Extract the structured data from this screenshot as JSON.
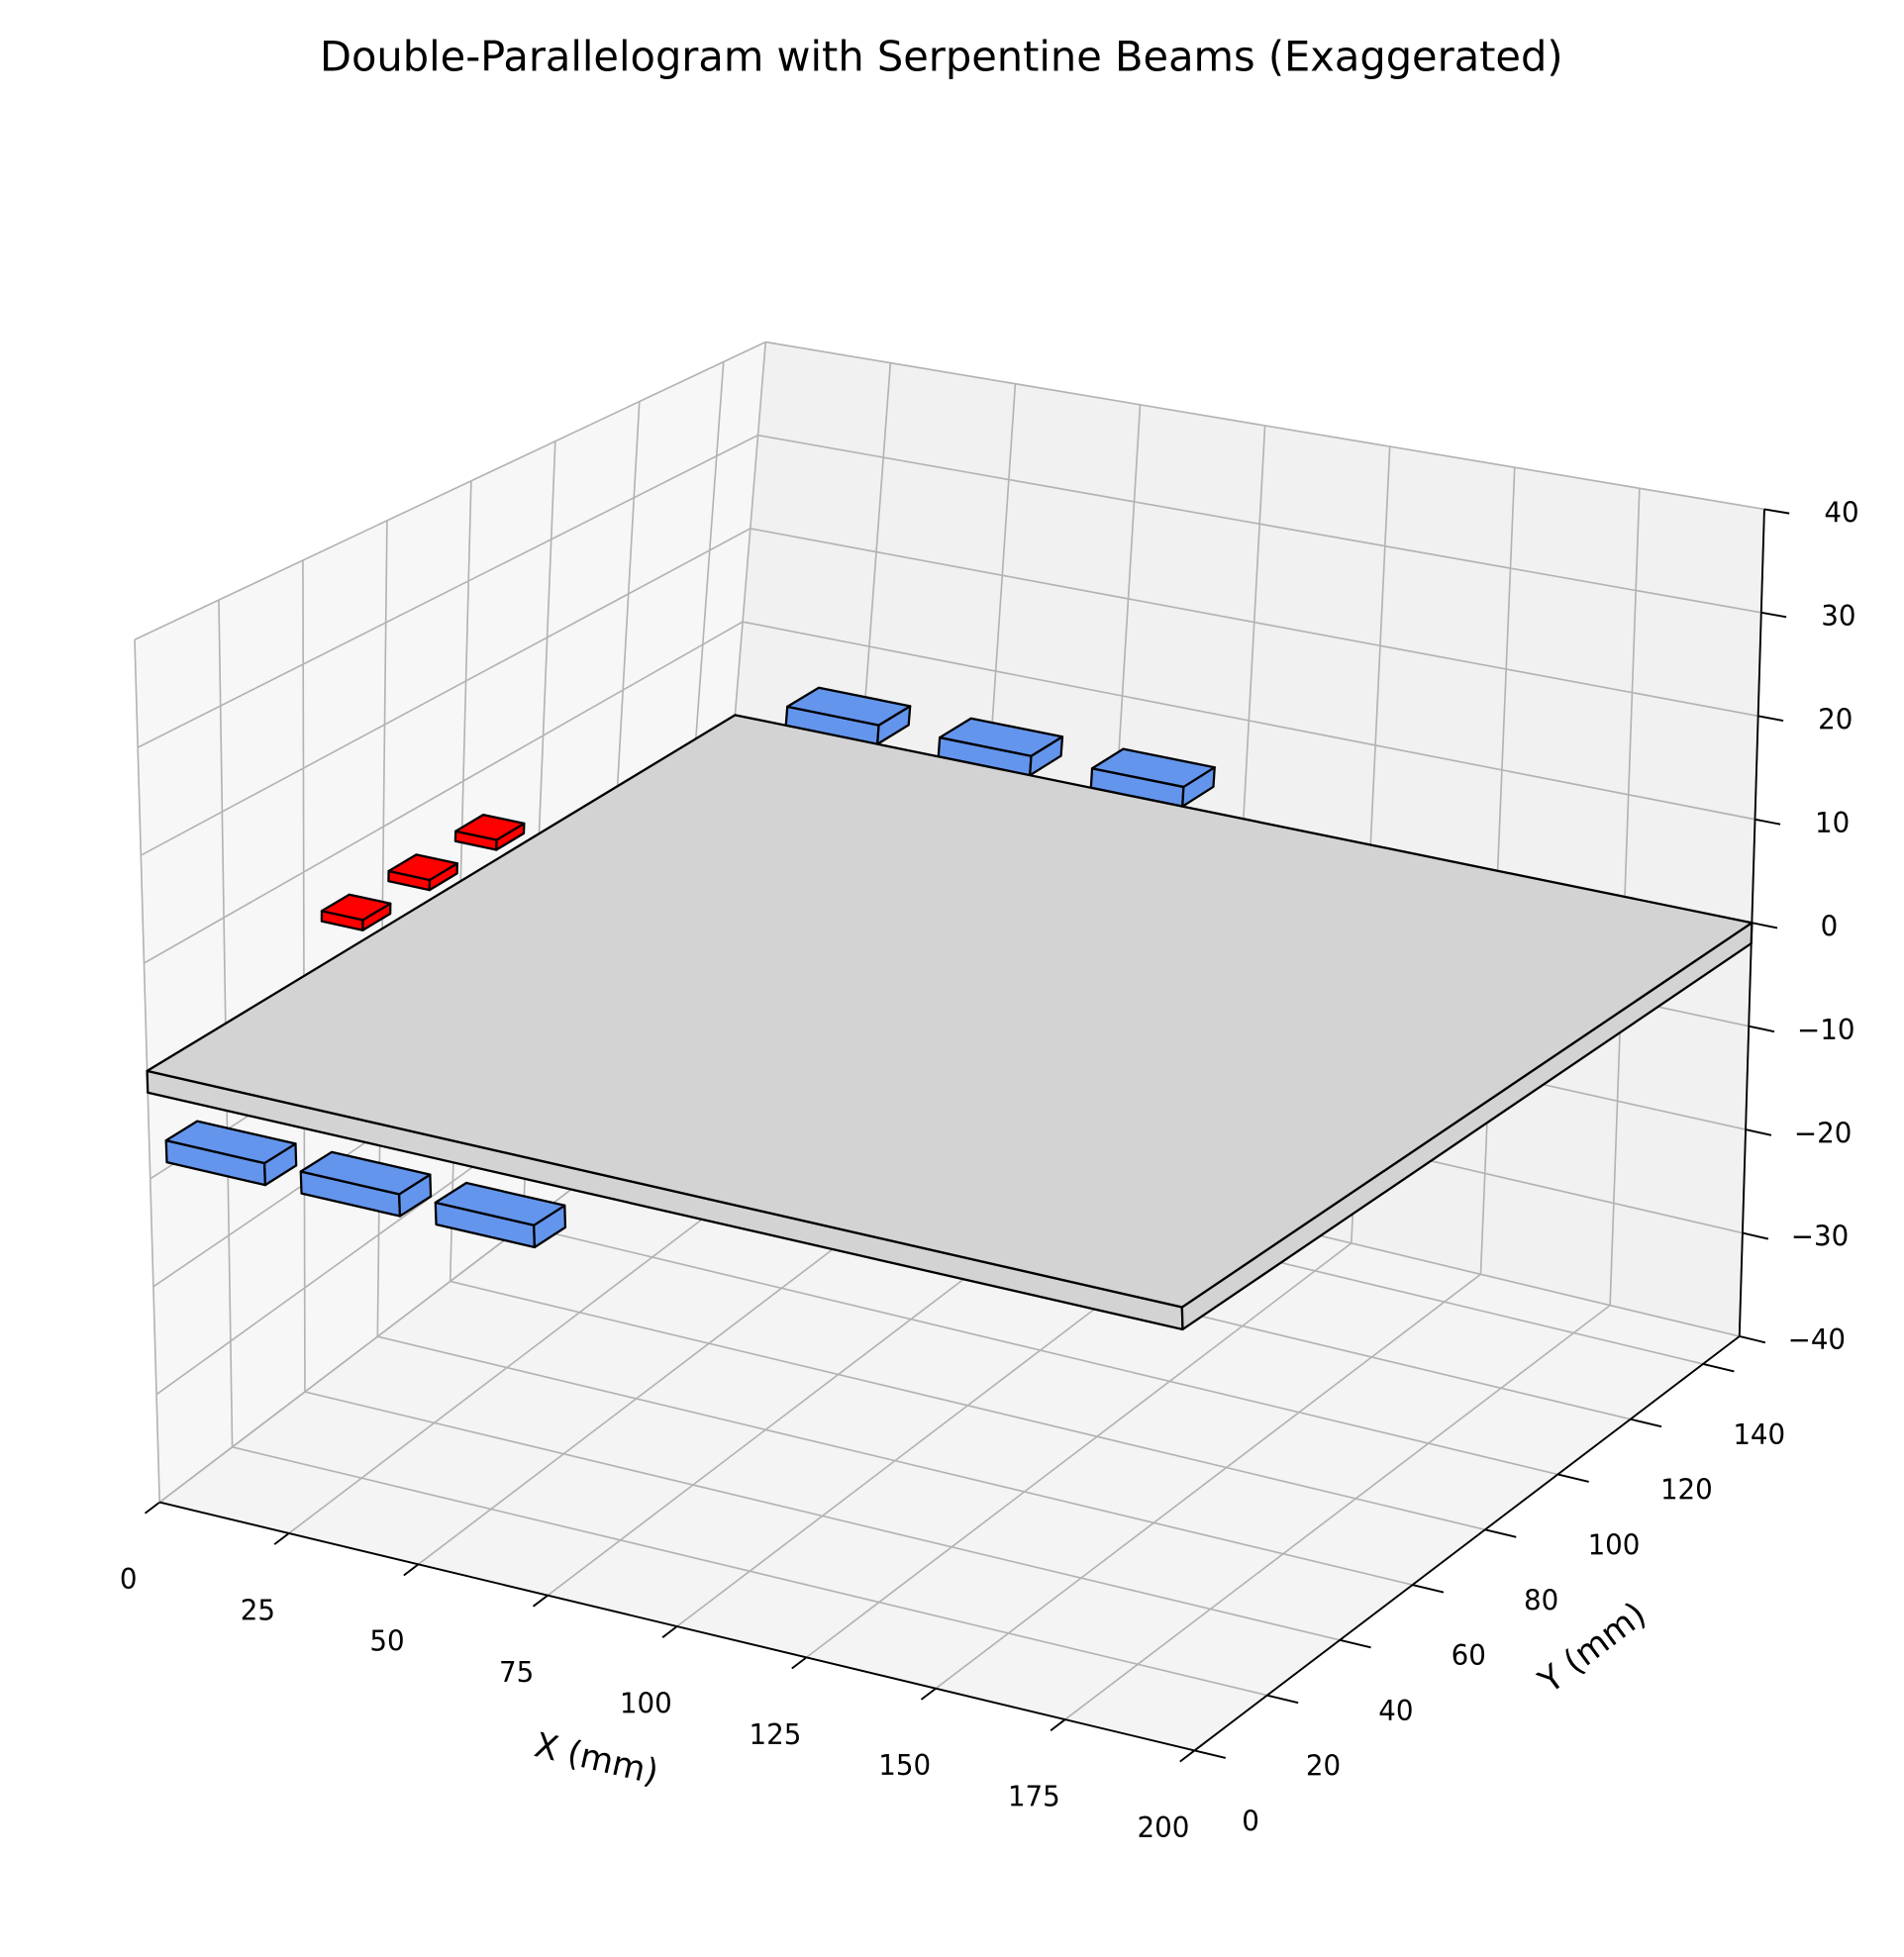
{
  "chart_data": {
    "type": "3d-box",
    "title": "Double-Parallelogram with Serpentine Beams (Exaggerated)",
    "xlabel": "X (mm)",
    "ylabel": "Y (mm)",
    "xlim": [
      0,
      200
    ],
    "ylim": [
      0,
      150
    ],
    "zlim": [
      -40,
      40
    ],
    "xticks": [
      0,
      25,
      50,
      75,
      100,
      125,
      150,
      175,
      200
    ],
    "yticks": [
      0,
      20,
      40,
      60,
      80,
      100,
      120,
      140
    ],
    "zticks": [
      {
        "value": -40,
        "label": "−40"
      },
      {
        "value": -30,
        "label": "−30"
      },
      {
        "value": -20,
        "label": "−20"
      },
      {
        "value": -10,
        "label": "−10"
      },
      0,
      10,
      20,
      30,
      40
    ],
    "grid": true,
    "plate": {
      "color": "#d3d3d3",
      "x": [
        0,
        200
      ],
      "y": [
        0,
        150
      ],
      "z": [
        -2,
        0
      ]
    },
    "pads": [
      {
        "color": "#6495ed",
        "boxes": [
          {
            "x": [
              10,
              28
            ],
            "y": [
              150,
              158
            ],
            "z": [
              0,
              2
            ]
          },
          {
            "x": [
              40,
              58
            ],
            "y": [
              150,
              158
            ],
            "z": [
              0,
              2
            ]
          },
          {
            "x": [
              70,
              88
            ],
            "y": [
              150,
              158
            ],
            "z": [
              0,
              2
            ]
          },
          {
            "x": [
              11,
              30
            ],
            "y": [
              -10,
              -2
            ],
            "z": [
              -5,
              -3
            ]
          },
          {
            "x": [
              37,
              56
            ],
            "y": [
              -10,
              -2
            ],
            "z": [
              -5,
              -3
            ]
          },
          {
            "x": [
              63,
              82
            ],
            "y": [
              -10,
              -2
            ],
            "z": [
              -5,
              -3
            ]
          }
        ]
      },
      {
        "color": "#ff0000",
        "boxes": [
          {
            "x": [
              -8,
              0
            ],
            "y": [
              55,
              62
            ],
            "z": [
              1,
              2
            ]
          },
          {
            "x": [
              -8,
              0
            ],
            "y": [
              72,
              79
            ],
            "z": [
              1,
              2
            ]
          },
          {
            "x": [
              -8,
              0
            ],
            "y": [
              89,
              96
            ],
            "z": [
              1,
              2
            ]
          }
        ]
      }
    ]
  }
}
